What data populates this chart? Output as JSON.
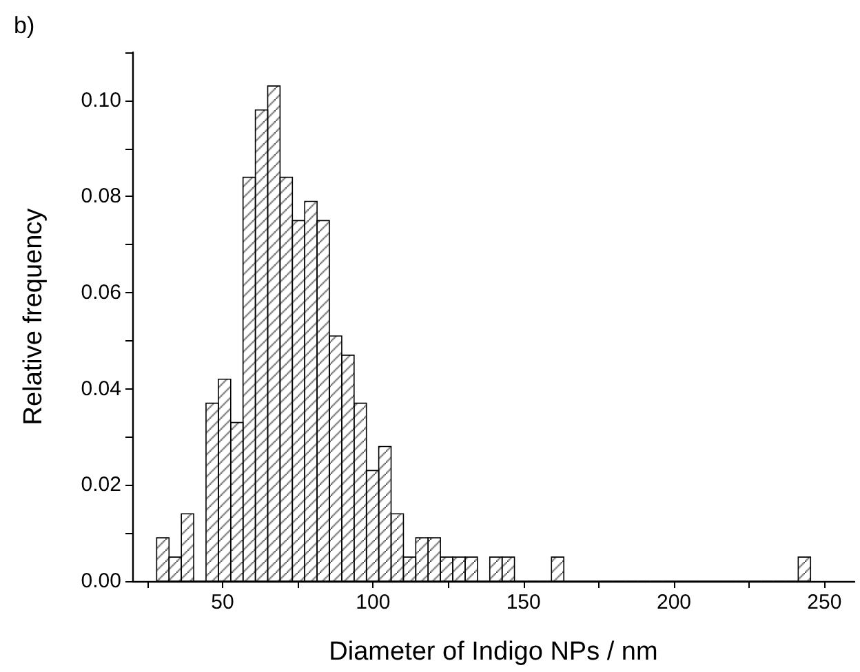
{
  "chart_data": {
    "type": "histogram",
    "xlabel": "Diameter of Indigo NPs / nm",
    "ylabel": "Relative frequency",
    "annotations": [
      "b)"
    ],
    "bins": [
      28.1,
      32.2,
      36.3,
      40.4,
      44.5,
      48.6,
      52.7,
      56.8,
      60.9,
      65.0,
      69.1,
      73.2,
      77.3,
      81.4,
      85.5,
      89.6,
      93.7,
      97.8,
      101.9,
      106.0,
      110.1,
      114.2,
      118.3,
      122.4,
      126.5,
      130.6,
      134.7,
      138.8,
      142.9,
      147.0,
      151.1,
      155.2,
      159.3,
      163.4,
      167.5,
      171.6,
      175.7,
      179.8,
      183.9,
      188.0,
      192.1,
      196.2,
      200.3,
      204.4,
      208.5,
      212.6,
      216.7,
      220.8,
      224.9,
      229.0,
      233.1,
      237.2,
      241.3,
      245.4
    ],
    "values": [
      0.009,
      0.005,
      0.014,
      0,
      0.037,
      0.042,
      0.033,
      0.084,
      0.098,
      0.103,
      0.084,
      0.075,
      0.079,
      0.075,
      0.051,
      0.047,
      0.037,
      0.023,
      0.028,
      0.014,
      0.005,
      0.009,
      0.009,
      0.005,
      0.005,
      0.005,
      0,
      0.005,
      0.005,
      0,
      0,
      0,
      0.005,
      0,
      0,
      0,
      0,
      0,
      0,
      0,
      0,
      0,
      0,
      0,
      0,
      0,
      0,
      0,
      0,
      0,
      0,
      0,
      0.005
    ],
    "color": "#000000",
    "xlim": [
      20,
      260
    ],
    "xticks": [
      {
        "value": 25,
        "label": null
      },
      50,
      {
        "value": 75,
        "label": null
      },
      100,
      {
        "value": 125,
        "label": null
      },
      150,
      {
        "value": 175,
        "label": null
      },
      200,
      {
        "value": 225,
        "label": null
      },
      250
    ],
    "ylim": [
      0,
      0.11
    ],
    "yticks": [
      {
        "value": 0,
        "label": "0.00"
      },
      {
        "value": 0.01,
        "label": null
      },
      {
        "value": 0.02,
        "label": "0.02"
      },
      {
        "value": 0.03,
        "label": null
      },
      {
        "value": 0.04,
        "label": "0.04"
      },
      {
        "value": 0.05,
        "label": null
      },
      {
        "value": 0.06,
        "label": "0.06"
      },
      {
        "value": 0.07,
        "label": null
      },
      {
        "value": 0.08,
        "label": "0.08"
      },
      {
        "value": 0.09,
        "label": null
      },
      {
        "value": 0.1,
        "label": "0.10"
      },
      {
        "value": 0.11,
        "label": null
      }
    ],
    "grid": false
  }
}
